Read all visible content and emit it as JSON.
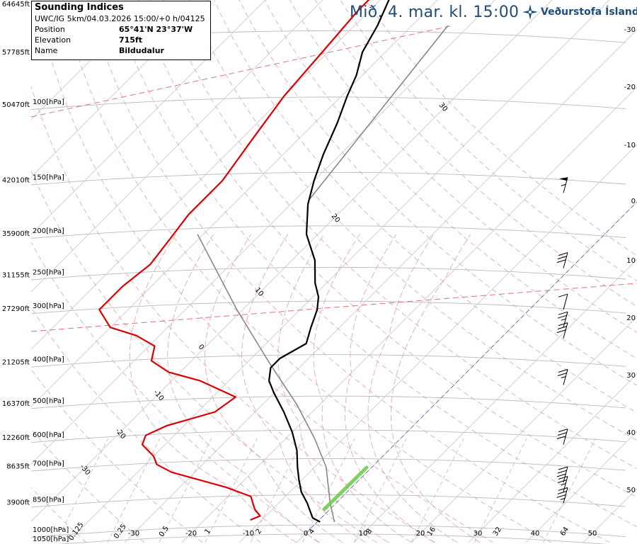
{
  "header": {
    "headline": "Mið. 4. mar. kl. 15:00",
    "brand": "Veðurstofa Íslands",
    "brand_icon": "vedurstofa-star-icon",
    "brand_color": "#1f4e79"
  },
  "info": {
    "title": "Sounding Indices",
    "subtitle": "UWC/IG 5km/04.03.2026 15:00/+0 h/04125",
    "rows": [
      {
        "label": "Position",
        "value": "65°41'N 23°37'W"
      },
      {
        "label": "Elevation",
        "value": "715ft"
      },
      {
        "label": "Name",
        "value": "Bildudalur"
      }
    ]
  },
  "chart_data": {
    "type": "line",
    "diagram": "skew-t log-p",
    "pressure_levels": [
      {
        "p": 1000,
        "label": "1000[hPa]",
        "ft": ""
      },
      {
        "p": 1050,
        "label": "1050[hPa]",
        "ft": ""
      },
      {
        "p": 850,
        "label": "850[hPa]",
        "ft": "3900ft"
      },
      {
        "p": 700,
        "label": "700[hPa]",
        "ft": "8635ft"
      },
      {
        "p": 600,
        "label": "600[hPa]",
        "ft": "12260ft"
      },
      {
        "p": 500,
        "label": "500[hPa]",
        "ft": "16370ft"
      },
      {
        "p": 400,
        "label": "400[hPa]",
        "ft": "21205ft"
      },
      {
        "p": 300,
        "label": "300[hPa]",
        "ft": "27290ft"
      },
      {
        "p": 250,
        "label": "250[hPa]",
        "ft": "31155ft"
      },
      {
        "p": 200,
        "label": "200[hPa]",
        "ft": "35900ft"
      },
      {
        "p": 150,
        "label": "150[hPa]",
        "ft": "42010ft"
      },
      {
        "p": 100,
        "label": "100[hPa]",
        "ft": "50470ft"
      }
    ],
    "extra_heights": [
      {
        "p": 70,
        "ft": "57785ft"
      },
      {
        "p": 50,
        "ft": "64645ft"
      }
    ],
    "temperature_ticks_bottom": [
      "-30",
      "-20",
      "-10",
      "0",
      "10",
      "20",
      "30",
      "40",
      "50"
    ],
    "temperature_ticks_right": [
      "-30",
      "-20",
      "-10",
      "0",
      "10",
      "20",
      "30",
      "40",
      "50"
    ],
    "mixing_ratio_labels": [
      "0.125",
      "0.25",
      "0.5",
      "1",
      "2",
      "4",
      "8",
      "16",
      "32",
      "64"
    ],
    "dry_adiabat_labels": [
      "-30",
      "-20",
      "-10",
      "0",
      "10",
      "20",
      "30"
    ],
    "temperature_profile": [
      {
        "p": 940,
        "t": 0.5
      },
      {
        "p": 920,
        "t": -1.5
      },
      {
        "p": 850,
        "t": -5
      },
      {
        "p": 800,
        "t": -8
      },
      {
        "p": 750,
        "t": -10.5
      },
      {
        "p": 700,
        "t": -13
      },
      {
        "p": 640,
        "t": -16
      },
      {
        "p": 580,
        "t": -20
      },
      {
        "p": 520,
        "t": -25
      },
      {
        "p": 470,
        "t": -30
      },
      {
        "p": 440,
        "t": -33
      },
      {
        "p": 410,
        "t": -35
      },
      {
        "p": 390,
        "t": -35
      },
      {
        "p": 360,
        "t": -33
      },
      {
        "p": 330,
        "t": -35
      },
      {
        "p": 300,
        "t": -37
      },
      {
        "p": 280,
        "t": -39
      },
      {
        "p": 260,
        "t": -42
      },
      {
        "p": 230,
        "t": -46
      },
      {
        "p": 200,
        "t": -52
      },
      {
        "p": 170,
        "t": -57
      },
      {
        "p": 150,
        "t": -60
      },
      {
        "p": 130,
        "t": -63
      },
      {
        "p": 110,
        "t": -66
      },
      {
        "p": 95,
        "t": -69
      },
      {
        "p": 85,
        "t": -71
      },
      {
        "p": 75,
        "t": -74
      },
      {
        "p": 65,
        "t": -76
      },
      {
        "p": 55,
        "t": -79
      },
      {
        "p": 50,
        "t": -80
      }
    ],
    "dewpoint_profile": [
      {
        "p": 930,
        "t": -12
      },
      {
        "p": 910,
        "t": -11
      },
      {
        "p": 880,
        "t": -13
      },
      {
        "p": 860,
        "t": -14
      },
      {
        "p": 820,
        "t": -16
      },
      {
        "p": 780,
        "t": -22
      },
      {
        "p": 720,
        "t": -34
      },
      {
        "p": 690,
        "t": -38
      },
      {
        "p": 660,
        "t": -40
      },
      {
        "p": 620,
        "t": -44
      },
      {
        "p": 590,
        "t": -45
      },
      {
        "p": 560,
        "t": -43
      },
      {
        "p": 520,
        "t": -37
      },
      {
        "p": 480,
        "t": -36
      },
      {
        "p": 440,
        "t": -45
      },
      {
        "p": 420,
        "t": -52
      },
      {
        "p": 395,
        "t": -57
      },
      {
        "p": 365,
        "t": -59
      },
      {
        "p": 345,
        "t": -64
      },
      {
        "p": 330,
        "t": -70
      },
      {
        "p": 300,
        "t": -75
      },
      {
        "p": 265,
        "t": -75
      },
      {
        "p": 235,
        "t": -74
      },
      {
        "p": 205,
        "t": -75
      },
      {
        "p": 180,
        "t": -76
      },
      {
        "p": 150,
        "t": -76
      },
      {
        "p": 120,
        "t": -78
      },
      {
        "p": 95,
        "t": -80
      },
      {
        "p": 75,
        "t": -81
      },
      {
        "p": 60,
        "t": -82
      },
      {
        "p": 50,
        "t": -82
      }
    ],
    "parcel_curve": [
      {
        "p": 940,
        "t": 3
      },
      {
        "p": 850,
        "t": -1
      },
      {
        "p": 700,
        "t": -8
      },
      {
        "p": 600,
        "t": -15
      },
      {
        "p": 500,
        "t": -24
      },
      {
        "p": 400,
        "t": -36
      },
      {
        "p": 300,
        "t": -51
      },
      {
        "p": 200,
        "t": -71
      }
    ],
    "wind_barbs": [
      {
        "p": 160,
        "speed": 55,
        "dir": 250
      },
      {
        "p": 240,
        "speed": 30,
        "dir": 250
      },
      {
        "p": 300,
        "speed": 10,
        "dir": 250
      },
      {
        "p": 330,
        "speed": 25,
        "dir": 250
      },
      {
        "p": 350,
        "speed": 30,
        "dir": 250
      },
      {
        "p": 450,
        "speed": 25,
        "dir": 250
      },
      {
        "p": 620,
        "speed": 30,
        "dir": 250
      },
      {
        "p": 760,
        "speed": 30,
        "dir": 250
      },
      {
        "p": 800,
        "speed": 25,
        "dir": 250
      },
      {
        "p": 850,
        "speed": 35,
        "dir": 250
      }
    ],
    "colors": {
      "temperature": "#000000",
      "dewpoint": "#dd0000",
      "parcel": "#888888",
      "isobar": "#bbbbbb",
      "isotherm": "#cccccc",
      "dry_adiabat": "#e3a0a8",
      "moist_adiabat": "#e3a0a8",
      "mixing_ratio": "#bbbbbb",
      "zero_isotherm": "#6666cc",
      "tropopause": "#e07070",
      "lcl_segment": "#66cc44"
    }
  }
}
